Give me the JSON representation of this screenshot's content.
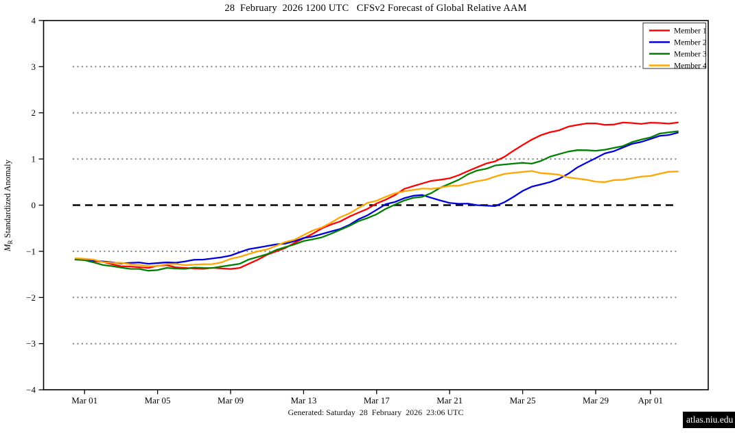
{
  "page": {
    "title": "28  February  2026 1200 UTC   CFSv2 Forecast of Global Relative AAM",
    "footer": "Generated: Saturday  28  February  2026  23:06 UTC",
    "badge": "atlas.niu.edu"
  },
  "chart_data": {
    "type": "line",
    "title": "28  February  2026 1200 UTC   CFSv2 Forecast of Global Relative AAM",
    "xlabel": "",
    "ylabel": "M_R Standardized Anomaly",
    "ylabel_parts": {
      "m": "M",
      "sub": "R",
      "rest": " Standardized Anomaly"
    },
    "ylim": [
      -4,
      4
    ],
    "yticks": [
      {
        "value": 4,
        "label": "4"
      },
      {
        "value": 3,
        "label": "3"
      },
      {
        "value": 2,
        "label": "2"
      },
      {
        "value": 1,
        "label": "1"
      },
      {
        "value": 0,
        "label": "0"
      },
      {
        "value": -1,
        "label": "−1"
      },
      {
        "value": -2,
        "label": "−2"
      },
      {
        "value": -3,
        "label": "−3"
      },
      {
        "value": -4,
        "label": "−4"
      }
    ],
    "x_ticks": [
      {
        "day": 1,
        "label": "Mar 01"
      },
      {
        "day": 5,
        "label": "Mar 05"
      },
      {
        "day": 9,
        "label": "Mar 09"
      },
      {
        "day": 13,
        "label": "Mar 13"
      },
      {
        "day": 17,
        "label": "Mar 17"
      },
      {
        "day": 21,
        "label": "Mar 21"
      },
      {
        "day": 25,
        "label": "Mar 25"
      },
      {
        "day": 29,
        "label": "Mar 29"
      },
      {
        "day": 32,
        "label": "Apr 01"
      }
    ],
    "x_start_day": 0.5,
    "x_step_days": 1,
    "reference_lines": {
      "zero_dashed": 0,
      "dotted": [
        3,
        2,
        1,
        -1,
        -2,
        -3
      ]
    },
    "grid_color": "#7f7f7f",
    "zero_line_color": "#000000",
    "legend": {
      "position": "top-right",
      "entries": [
        "Member 1",
        "Member 2",
        "Member 3",
        "Member 4"
      ]
    },
    "series": [
      {
        "name": "Member 1",
        "color": "#ff0000",
        "values": [
          -1.17,
          -1.21,
          -1.28,
          -1.33,
          -1.36,
          -1.3,
          -1.36,
          -1.38,
          -1.37,
          -1.36,
          -1.18,
          -1.0,
          -0.82,
          -0.62,
          -0.42,
          -0.25,
          -0.08,
          0.12,
          0.35,
          0.47,
          0.55,
          0.65,
          0.82,
          0.95,
          1.18,
          1.42,
          1.58,
          1.7,
          1.77,
          1.74,
          1.79,
          1.76,
          1.78,
          1.79
        ]
      },
      {
        "name": "Member 2",
        "color": "#0000dd",
        "values": [
          -1.18,
          -1.2,
          -1.24,
          -1.25,
          -1.27,
          -1.24,
          -1.22,
          -1.18,
          -1.13,
          -1.02,
          -0.92,
          -0.85,
          -0.78,
          -0.68,
          -0.57,
          -0.43,
          -0.22,
          0.02,
          0.15,
          0.22,
          0.1,
          0.03,
          0.0,
          -0.02,
          0.18,
          0.4,
          0.5,
          0.68,
          0.92,
          1.12,
          1.25,
          1.37,
          1.5,
          1.57
        ]
      },
      {
        "name": "Member 3",
        "color": "#008000",
        "values": [
          -1.18,
          -1.24,
          -1.32,
          -1.38,
          -1.42,
          -1.36,
          -1.38,
          -1.36,
          -1.33,
          -1.27,
          -1.12,
          -0.97,
          -0.85,
          -0.74,
          -0.62,
          -0.45,
          -0.28,
          -0.08,
          0.1,
          0.18,
          0.38,
          0.55,
          0.75,
          0.86,
          0.9,
          0.9,
          1.05,
          1.16,
          1.19,
          1.2,
          1.28,
          1.42,
          1.55,
          1.6
        ]
      },
      {
        "name": "Member 4",
        "color": "#ffa500",
        "values": [
          -1.15,
          -1.18,
          -1.25,
          -1.28,
          -1.32,
          -1.28,
          -1.3,
          -1.28,
          -1.24,
          -1.12,
          -1.0,
          -0.88,
          -0.75,
          -0.55,
          -0.38,
          -0.18,
          0.05,
          0.18,
          0.3,
          0.36,
          0.38,
          0.42,
          0.52,
          0.62,
          0.7,
          0.74,
          0.68,
          0.6,
          0.55,
          0.5,
          0.55,
          0.62,
          0.68,
          0.73
        ]
      }
    ]
  }
}
